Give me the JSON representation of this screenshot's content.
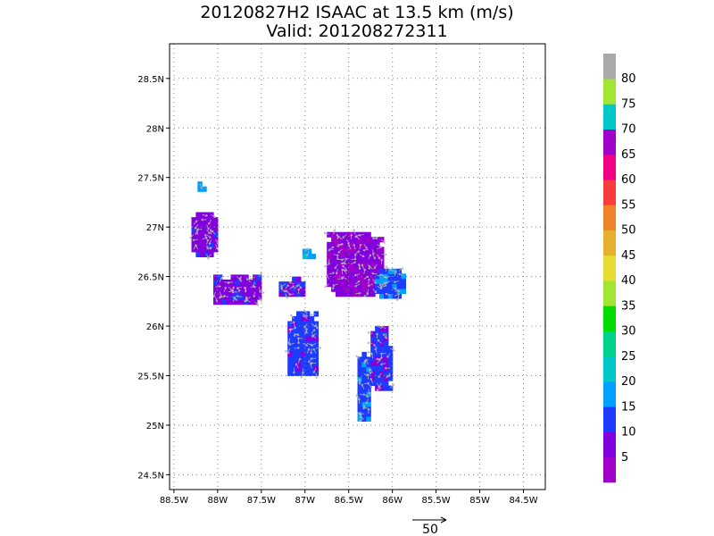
{
  "chart_data": {
    "type": "heatmap",
    "title": "20120827H2 ISAAC at 13.5 km (m/s)",
    "subtitle": "Valid: 201208272311",
    "xlim": [
      -88.55,
      -84.25
    ],
    "ylim": [
      24.35,
      28.85
    ],
    "x_ticks": [
      -88.5,
      -88,
      -87.5,
      -87,
      -86.5,
      -86,
      -85.5,
      -85,
      -84.5
    ],
    "x_tick_labels": [
      "88.5W",
      "88W",
      "87.5W",
      "87W",
      "86.5W",
      "86W",
      "85.5W",
      "85W",
      "84.5W"
    ],
    "y_ticks": [
      24.5,
      25,
      25.5,
      26,
      26.5,
      27,
      27.5,
      28,
      28.5
    ],
    "y_tick_labels": [
      "24.5N",
      "25N",
      "25.5N",
      "26N",
      "26.5N",
      "27N",
      "27.5N",
      "28N",
      "28.5N"
    ],
    "grid": true,
    "cell_size_deg": 0.05,
    "colorbar": {
      "levels": [
        5,
        10,
        15,
        20,
        25,
        30,
        35,
        40,
        45,
        50,
        55,
        60,
        65,
        70,
        75,
        80
      ],
      "labels": [
        "5",
        "10",
        "15",
        "20",
        "25",
        "30",
        "35",
        "40",
        "45",
        "50",
        "55",
        "60",
        "65",
        "70",
        "75",
        "80"
      ],
      "colors": [
        "#a000c8",
        "#8200dc",
        "#1e3cff",
        "#00a0ff",
        "#00c8c8",
        "#00d28c",
        "#00dc00",
        "#a0e632",
        "#e6dc32",
        "#e6af2d",
        "#f08228",
        "#fa3c3c",
        "#f00082",
        "#a000c8",
        "#00c8c8",
        "#a0e632",
        "#aaaaaa"
      ]
    },
    "reference_vector": {
      "label": "50"
    },
    "regions": [
      {
        "lon": [
          -88.23,
          -88.15
        ],
        "lat": [
          27.36,
          27.44
        ],
        "speed": 18
      },
      {
        "lon": [
          -88.3,
          -88.03
        ],
        "lat": [
          26.7,
          27.15
        ],
        "speed": 8
      },
      {
        "lon": [
          -88.05,
          -87.5
        ],
        "lat": [
          26.22,
          26.48
        ],
        "speed": 8
      },
      {
        "lon": [
          -87.3,
          -87.0
        ],
        "lat": [
          26.3,
          26.46
        ],
        "speed": 10
      },
      {
        "lon": [
          -87.03,
          -86.9
        ],
        "lat": [
          26.68,
          26.76
        ],
        "speed": 18
      },
      {
        "lon": [
          -87.2,
          -86.87
        ],
        "lat": [
          25.5,
          26.12
        ],
        "speed": 12
      },
      {
        "lon": [
          -86.75,
          -86.1
        ],
        "lat": [
          26.3,
          26.92
        ],
        "speed": 6
      },
      {
        "lon": [
          -86.2,
          -85.87
        ],
        "lat": [
          26.28,
          26.58
        ],
        "speed": 14
      },
      {
        "lon": [
          -86.4,
          -86.25
        ],
        "lat": [
          25.04,
          25.7
        ],
        "speed": 13
      },
      {
        "lon": [
          -86.25,
          -86.03
        ],
        "lat": [
          25.35,
          25.98
        ],
        "speed": 11
      }
    ]
  }
}
